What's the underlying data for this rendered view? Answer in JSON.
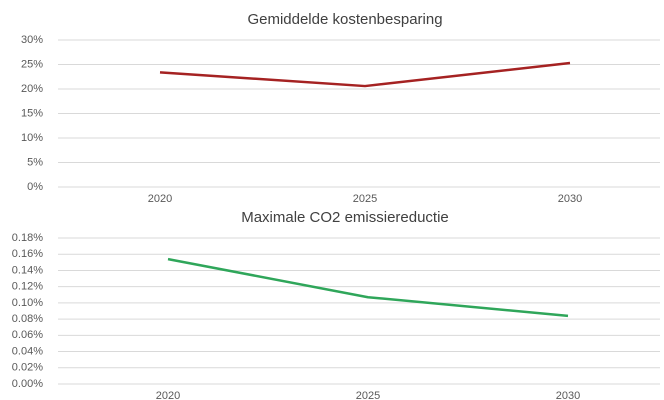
{
  "chart_data": [
    {
      "type": "line",
      "title": "Gemiddelde kostenbesparing",
      "categories": [
        "2020",
        "2025",
        "2030"
      ],
      "series": [
        {
          "color": "#a52222",
          "values": [
            23.4,
            20.6,
            25.3
          ]
        }
      ],
      "ylim": [
        0,
        30
      ],
      "yticks": [
        {
          "value": 0,
          "label": "0%"
        },
        {
          "value": 5,
          "label": "5%"
        },
        {
          "value": 10,
          "label": "10%"
        },
        {
          "value": 15,
          "label": "15%"
        },
        {
          "value": 20,
          "label": "20%"
        },
        {
          "value": 25,
          "label": "25%"
        },
        {
          "value": 30,
          "label": "30%"
        }
      ],
      "grid": true
    },
    {
      "type": "line",
      "title": "Maximale CO2 emissiereductie",
      "categories": [
        "2020",
        "2025",
        "2030"
      ],
      "series": [
        {
          "color": "#2fa65a",
          "values": [
            0.154,
            0.107,
            0.084
          ]
        }
      ],
      "ylim": [
        0,
        0.18
      ],
      "yticks": [
        {
          "value": 0,
          "label": "0.00%"
        },
        {
          "value": 0.02,
          "label": "0.02%"
        },
        {
          "value": 0.04,
          "label": "0.04%"
        },
        {
          "value": 0.06,
          "label": "0.06%"
        },
        {
          "value": 0.08,
          "label": "0.08%"
        },
        {
          "value": 0.1,
          "label": "0.10%"
        },
        {
          "value": 0.12,
          "label": "0.12%"
        },
        {
          "value": 0.14,
          "label": "0.14%"
        },
        {
          "value": 0.16,
          "label": "0.16%"
        },
        {
          "value": 0.18,
          "label": "0.18%"
        }
      ],
      "grid": true
    }
  ]
}
